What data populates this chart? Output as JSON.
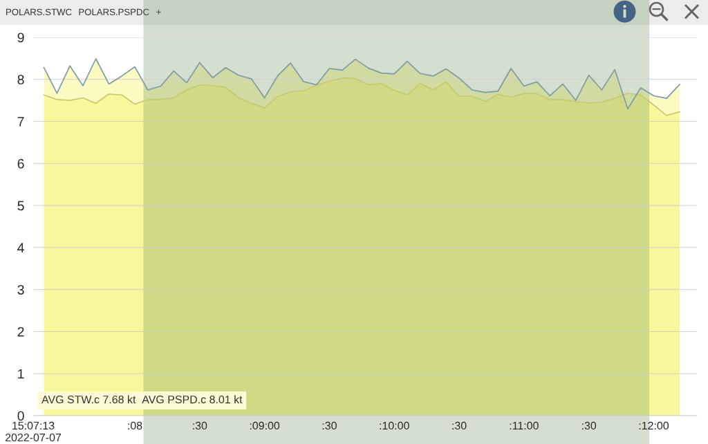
{
  "chart_data": {
    "type": "area",
    "annotations": [
      "POLARS.STWC",
      "POLARS.PSPDC",
      "+",
      "AVG STW.c 7.68 kt",
      "AVG PSPD.c 8.01 kt"
    ],
    "x": [
      "2022-07-07T15:07:18",
      "2022-07-07T15:07:24",
      "2022-07-07T15:07:30",
      "2022-07-07T15:07:36",
      "2022-07-07T15:07:42",
      "2022-07-07T15:07:48",
      "2022-07-07T15:07:54",
      "2022-07-07T15:08:00",
      "2022-07-07T15:08:06",
      "2022-07-07T15:08:12",
      "2022-07-07T15:08:18",
      "2022-07-07T15:08:24",
      "2022-07-07T15:08:30",
      "2022-07-07T15:08:36",
      "2022-07-07T15:08:42",
      "2022-07-07T15:08:48",
      "2022-07-07T15:08:54",
      "2022-07-07T15:09:00",
      "2022-07-07T15:09:06",
      "2022-07-07T15:09:12",
      "2022-07-07T15:09:18",
      "2022-07-07T15:09:24",
      "2022-07-07T15:09:30",
      "2022-07-07T15:09:36",
      "2022-07-07T15:09:42",
      "2022-07-07T15:09:48",
      "2022-07-07T15:09:54",
      "2022-07-07T15:10:00",
      "2022-07-07T15:10:06",
      "2022-07-07T15:10:12",
      "2022-07-07T15:10:18",
      "2022-07-07T15:10:24",
      "2022-07-07T15:10:30",
      "2022-07-07T15:10:36",
      "2022-07-07T15:10:42",
      "2022-07-07T15:10:48",
      "2022-07-07T15:10:54",
      "2022-07-07T15:11:00",
      "2022-07-07T15:11:06",
      "2022-07-07T15:11:12",
      "2022-07-07T15:11:18",
      "2022-07-07T15:11:24",
      "2022-07-07T15:11:30",
      "2022-07-07T15:11:36",
      "2022-07-07T15:11:42",
      "2022-07-07T15:11:48",
      "2022-07-07T15:11:54",
      "2022-07-07T15:12:00",
      "2022-07-07T15:12:06",
      "2022-07-07T15:12:12"
    ],
    "series": [
      {
        "color": "#c9c96a",
        "values": [
          7.63,
          7.52,
          7.5,
          7.56,
          7.43,
          7.65,
          7.63,
          7.41,
          7.52,
          7.52,
          7.56,
          7.75,
          7.87,
          7.85,
          7.81,
          7.56,
          7.43,
          7.32,
          7.59,
          7.7,
          7.73,
          7.86,
          7.96,
          8.03,
          8.02,
          7.87,
          7.9,
          7.74,
          7.63,
          7.9,
          7.75,
          7.94,
          7.6,
          7.6,
          7.48,
          7.64,
          7.58,
          7.66,
          7.66,
          7.52,
          7.52,
          7.47,
          7.44,
          7.46,
          7.55,
          7.67,
          7.63,
          7.39,
          7.14,
          7.23
        ]
      },
      {
        "color": "#7d9ca3",
        "values": [
          8.28,
          7.67,
          8.32,
          7.85,
          8.49,
          7.89,
          8.08,
          8.3,
          7.75,
          7.84,
          8.2,
          7.92,
          8.4,
          8.04,
          8.28,
          8.1,
          8.01,
          7.56,
          8.08,
          8.39,
          7.95,
          7.87,
          8.26,
          8.22,
          8.48,
          8.27,
          8.15,
          8.13,
          8.43,
          8.14,
          8.08,
          8.25,
          8.03,
          7.75,
          7.69,
          7.72,
          8.26,
          7.84,
          7.94,
          7.61,
          7.89,
          7.5,
          8.1,
          7.75,
          8.23,
          7.3,
          7.8,
          7.61,
          7.55,
          7.88
        ]
      }
    ],
    "xlim": [
      "2022-07-07T15:07:13",
      "2022-07-07T15:12:20"
    ],
    "xticks": [
      {
        "value": "2022-07-07T15:07:13",
        "label": "15:07:13\n2022-07-07"
      },
      {
        "value": "2022-07-07T15:08:00",
        "label": ":08"
      },
      {
        "value": "2022-07-07T15:08:30",
        "label": ":30"
      },
      {
        "value": "2022-07-07T15:09:00",
        "label": ":09:00"
      },
      {
        "value": "2022-07-07T15:09:30",
        "label": ":30"
      },
      {
        "value": "2022-07-07T15:10:00",
        "label": ":10:00"
      },
      {
        "value": "2022-07-07T15:10:30",
        "label": ":30"
      },
      {
        "value": "2022-07-07T15:11:00",
        "label": ":11:00"
      },
      {
        "value": "2022-07-07T15:11:30",
        "label": ":30"
      },
      {
        "value": "2022-07-07T15:12:00",
        "label": ":12:00"
      }
    ],
    "ylim": [
      0,
      9
    ],
    "yticks": [
      0,
      1,
      2,
      3,
      4,
      5,
      6,
      7,
      8,
      9
    ],
    "grid": "y",
    "bands": [
      {
        "axis": "x",
        "from": "2022-07-07T15:08:04",
        "to": "2022-07-07T15:11:58",
        "color": "#608a4e"
      }
    ]
  }
}
